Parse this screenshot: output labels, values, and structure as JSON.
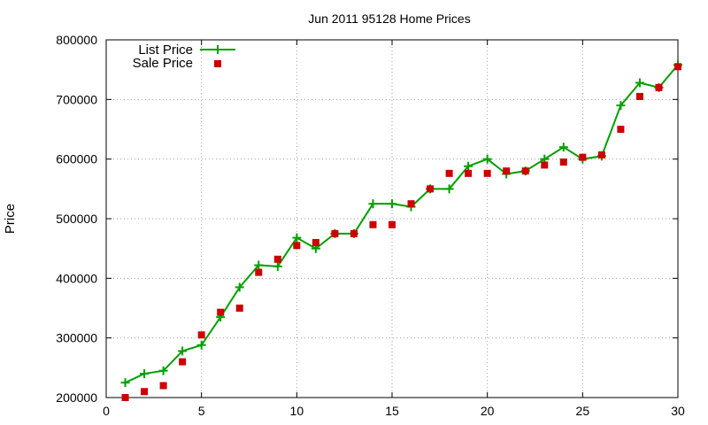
{
  "chart_data": {
    "type": "line",
    "title": "Jun 2011 95128 Home Prices",
    "xlabel": "",
    "ylabel": "Price",
    "xlim": [
      0,
      30
    ],
    "ylim": [
      200000,
      800000
    ],
    "x_ticks": [
      0,
      5,
      10,
      15,
      20,
      25,
      30
    ],
    "y_ticks": [
      200000,
      300000,
      400000,
      500000,
      600000,
      700000,
      800000
    ],
    "grid": true,
    "legend_position": "top-left",
    "x": [
      1,
      2,
      3,
      4,
      5,
      6,
      7,
      8,
      9,
      10,
      11,
      12,
      13,
      14,
      15,
      16,
      17,
      18,
      19,
      20,
      21,
      22,
      23,
      24,
      25,
      26,
      27,
      28,
      29,
      30
    ],
    "series": [
      {
        "name": "List Price",
        "style": "line-with-plus-markers",
        "color": "#00a000",
        "values": [
          225000,
          240000,
          245000,
          278000,
          288000,
          335000,
          385000,
          422000,
          420000,
          468000,
          450000,
          475000,
          475000,
          525000,
          525000,
          520000,
          550000,
          550000,
          588000,
          600000,
          575000,
          580000,
          600000,
          620000,
          600000,
          605000,
          690000,
          728000,
          720000,
          758000
        ]
      },
      {
        "name": "Sale Price",
        "style": "square-markers",
        "color": "#cc0000",
        "values": [
          200000,
          210000,
          220000,
          260000,
          305000,
          343000,
          350000,
          410000,
          432000,
          455000,
          460000,
          475000,
          475000,
          490000,
          490000,
          525000,
          550000,
          576000,
          576000,
          576000,
          580000,
          580000,
          590000,
          595000,
          603000,
          607000,
          650000,
          705000,
          720000,
          755000
        ]
      }
    ]
  }
}
